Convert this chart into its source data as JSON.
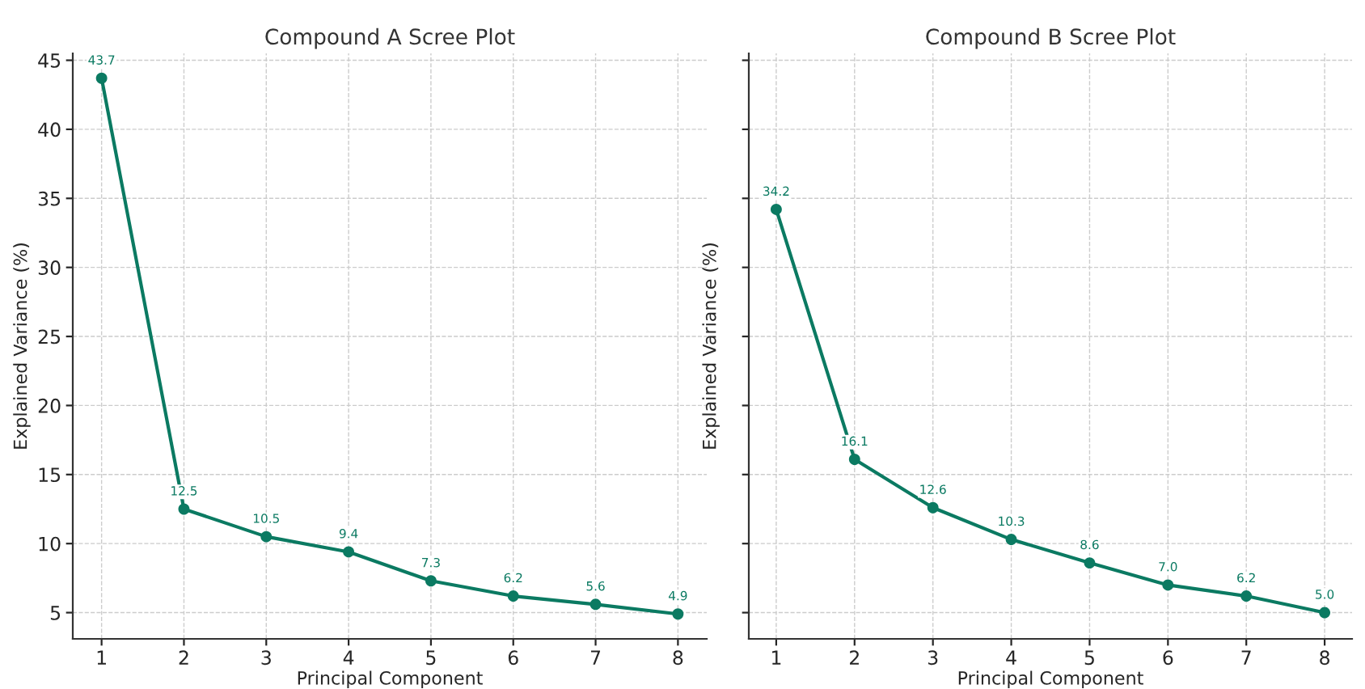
{
  "chart_data": [
    {
      "type": "line",
      "title": "Compound A Scree Plot",
      "xlabel": "Principal Component",
      "ylabel": "Explained Variance (%)",
      "x": [
        1,
        2,
        3,
        4,
        5,
        6,
        7,
        8
      ],
      "series": [
        {
          "color": "#0b7a62",
          "values": [
            43.7,
            12.5,
            10.5,
            9.4,
            7.3,
            6.2,
            5.6,
            4.9
          ],
          "value_labels": [
            "43.7",
            "12.5",
            "10.5",
            "9.4",
            "7.3",
            "6.2",
            "5.6",
            "4.9"
          ]
        }
      ],
      "xlim": [
        0.65,
        8.35
      ],
      "ylim": [
        3.1,
        45.5
      ],
      "xticks": [
        1,
        2,
        3,
        4,
        5,
        6,
        7,
        8
      ],
      "yticks": [
        5,
        10,
        15,
        20,
        25,
        30,
        35,
        40,
        45
      ],
      "grid": true,
      "marker": "circle",
      "line_style": "solid"
    },
    {
      "type": "line",
      "title": "Compound B Scree Plot",
      "xlabel": "Principal Component",
      "ylabel": "Explained Variance (%)",
      "x": [
        1,
        2,
        3,
        4,
        5,
        6,
        7,
        8
      ],
      "series": [
        {
          "color": "#0b7a62",
          "values": [
            34.2,
            16.1,
            12.6,
            10.3,
            8.6,
            7.0,
            6.2,
            5.0
          ],
          "value_labels": [
            "34.2",
            "16.1",
            "12.6",
            "10.3",
            "8.6",
            "7.0",
            "6.2",
            "5.0"
          ]
        }
      ],
      "xlim": [
        0.65,
        8.35
      ],
      "ylim": [
        3.1,
        45.5
      ],
      "xticks": [
        1,
        2,
        3,
        4,
        5,
        6,
        7,
        8
      ],
      "yticks": [
        5,
        10,
        15,
        20,
        25,
        30,
        35,
        40,
        45
      ],
      "grid": true,
      "marker": "circle",
      "line_style": "solid",
      "tick_labels": "x"
    }
  ]
}
